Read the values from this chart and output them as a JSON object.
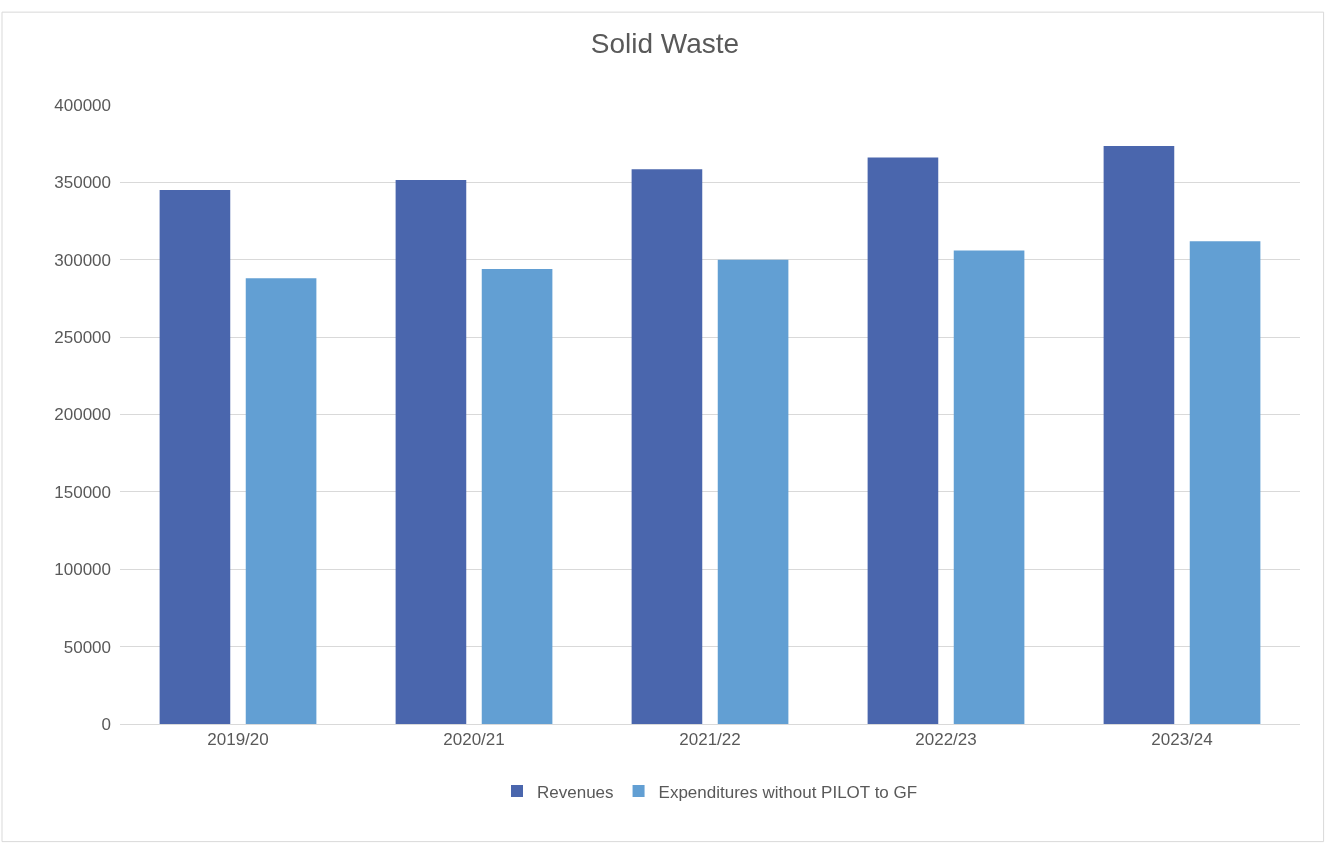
{
  "chart_data": {
    "type": "bar",
    "title": "Solid Waste",
    "categories": [
      "2019/20",
      "2020/21",
      "2021/22",
      "2022/23",
      "2023/24"
    ],
    "series": [
      {
        "name": "Revenues",
        "color": "#4a66ad",
        "values": [
          345000,
          351500,
          358500,
          366000,
          373500
        ]
      },
      {
        "name": "Expenditures without PILOT to GF",
        "color": "#629fd3",
        "values": [
          288000,
          294000,
          300000,
          306000,
          312000
        ]
      }
    ],
    "ylim": [
      0,
      400000
    ],
    "yticks": [
      0,
      50000,
      100000,
      150000,
      200000,
      250000,
      300000,
      350000,
      400000
    ],
    "grid": "y",
    "legend": "bottom"
  }
}
